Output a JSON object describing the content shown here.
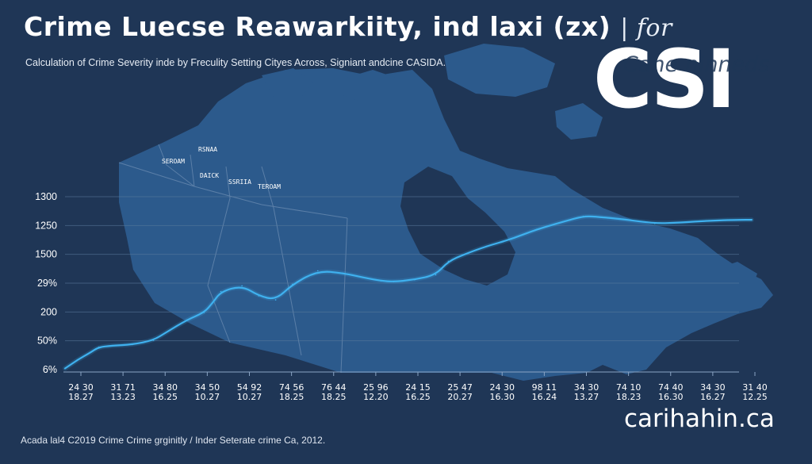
{
  "header": {
    "title": "Crime Luecse Reawarkiity, ind laxi (zx)",
    "title_suffix": "| for",
    "subtitle": "Calculation of Crime Severity inde by Freculity Setting Cityes Across, Signiant andcine CASIDA."
  },
  "badge": {
    "big": "CSI",
    "overlay": "Cane ninneds"
  },
  "map": {
    "labels": [
      "RSNAA",
      "SEROAM",
      "DAICK",
      "SSRIIA",
      "TEROAM"
    ]
  },
  "footnote": "Acada lal4 C2019 Crime Crime grginitly / Inder Seterate crime Ca, 2012.",
  "brand": "carihahin.ca",
  "colors": {
    "background": "#1f3656",
    "map_land": "#2c5a8c",
    "line": "#3fb1ef",
    "grid": "#5b7b9e"
  },
  "chart_data": {
    "type": "line",
    "title": "Crime Luecse Reawarkiity, ind laxi (zx)",
    "xlabel": "",
    "ylabel": "",
    "y_tick_labels": [
      "1300",
      "1250",
      "1500",
      "29%",
      "200",
      "50%",
      "6%"
    ],
    "x_tick_labels": [
      [
        "24 30",
        "18.27"
      ],
      [
        "31 71",
        "13.23"
      ],
      [
        "34 80",
        "16.25"
      ],
      [
        "34 50",
        "10.27"
      ],
      [
        "54 92",
        "10.27"
      ],
      [
        "74 56",
        "18.25"
      ],
      [
        "76 44",
        "18.25"
      ],
      [
        "25 96",
        "12.20"
      ],
      [
        "24 15",
        "16.25"
      ],
      [
        "25 47",
        "20.27"
      ],
      [
        "24 30",
        "16.30"
      ],
      [
        "98 11",
        "16.24"
      ],
      [
        "34 30",
        "13.27"
      ],
      [
        "74 10",
        "18.23"
      ],
      [
        "74 40",
        "16.30"
      ],
      [
        "34 30",
        "16.27"
      ],
      [
        "31 40",
        "12.25"
      ]
    ],
    "ylim": [
      0,
      6
    ],
    "grid": true,
    "series": [
      {
        "color": "#3fb1ef",
        "x": [
          0,
          0.3,
          0.6,
          0.8,
          1.1,
          1.6,
          2.1,
          2.4,
          2.9,
          3.3,
          3.5,
          3.7,
          4.2,
          4.6,
          5.0,
          5.4,
          6.0,
          6.6,
          7.1,
          7.5,
          7.8,
          8.3,
          8.8,
          9.1,
          9.5,
          10.0,
          10.6,
          11.2,
          11.9,
          12.3,
          12.6,
          13.3,
          14.0,
          14.6,
          15.3,
          16.0,
          16.3
        ],
        "y": [
          0.04,
          0.34,
          0.59,
          0.78,
          0.83,
          0.87,
          1.02,
          1.29,
          1.73,
          1.98,
          2.31,
          2.71,
          2.91,
          2.56,
          2.42,
          2.96,
          3.43,
          3.35,
          3.19,
          3.08,
          3.05,
          3.12,
          3.29,
          3.76,
          4.01,
          4.28,
          4.53,
          4.87,
          5.16,
          5.32,
          5.31,
          5.21,
          5.07,
          5.1,
          5.17,
          5.2,
          5.2
        ]
      }
    ]
  }
}
